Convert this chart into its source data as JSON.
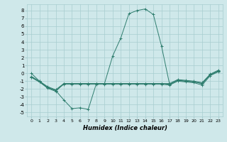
{
  "xlabel": "Humidex (Indice chaleur)",
  "xlim": [
    -0.5,
    23.5
  ],
  "ylim": [
    -5.5,
    8.8
  ],
  "xticks": [
    0,
    1,
    2,
    3,
    4,
    5,
    6,
    7,
    8,
    9,
    10,
    11,
    12,
    13,
    14,
    15,
    16,
    17,
    18,
    19,
    20,
    21,
    22,
    23
  ],
  "yticks": [
    -5,
    -4,
    -3,
    -2,
    -1,
    0,
    1,
    2,
    3,
    4,
    5,
    6,
    7,
    8
  ],
  "background_color": "#cfe8ea",
  "grid_color": "#a8cdd0",
  "line_color": "#2e7d6e",
  "series": [
    [
      0.0,
      -1.0,
      -1.8,
      -2.2,
      -3.4,
      -4.5,
      -4.4,
      -4.6,
      -1.3,
      -1.3,
      2.2,
      4.5,
      7.6,
      8.0,
      8.2,
      7.5,
      3.5,
      -1.4,
      -0.9,
      -1.0,
      -1.1,
      -1.3,
      -0.2,
      0.3
    ],
    [
      -0.5,
      -1.1,
      -1.9,
      -2.3,
      -1.3,
      -1.3,
      -1.3,
      -1.3,
      -1.3,
      -1.3,
      -1.3,
      -1.3,
      -1.3,
      -1.3,
      -1.3,
      -1.3,
      -1.3,
      -1.4,
      -0.9,
      -1.0,
      -1.1,
      -1.3,
      -0.2,
      0.3
    ],
    [
      -0.5,
      -1.1,
      -1.8,
      -2.2,
      -1.4,
      -1.4,
      -1.4,
      -1.4,
      -1.4,
      -1.4,
      -1.4,
      -1.4,
      -1.4,
      -1.4,
      -1.4,
      -1.4,
      -1.4,
      -1.5,
      -1.0,
      -1.1,
      -1.2,
      -1.5,
      -0.3,
      0.2
    ],
    [
      -0.4,
      -1.0,
      -1.7,
      -2.1,
      -1.3,
      -1.3,
      -1.3,
      -1.3,
      -1.3,
      -1.3,
      -1.3,
      -1.3,
      -1.3,
      -1.3,
      -1.3,
      -1.3,
      -1.3,
      -1.3,
      -0.8,
      -0.9,
      -1.0,
      -1.2,
      -0.1,
      0.4
    ]
  ]
}
